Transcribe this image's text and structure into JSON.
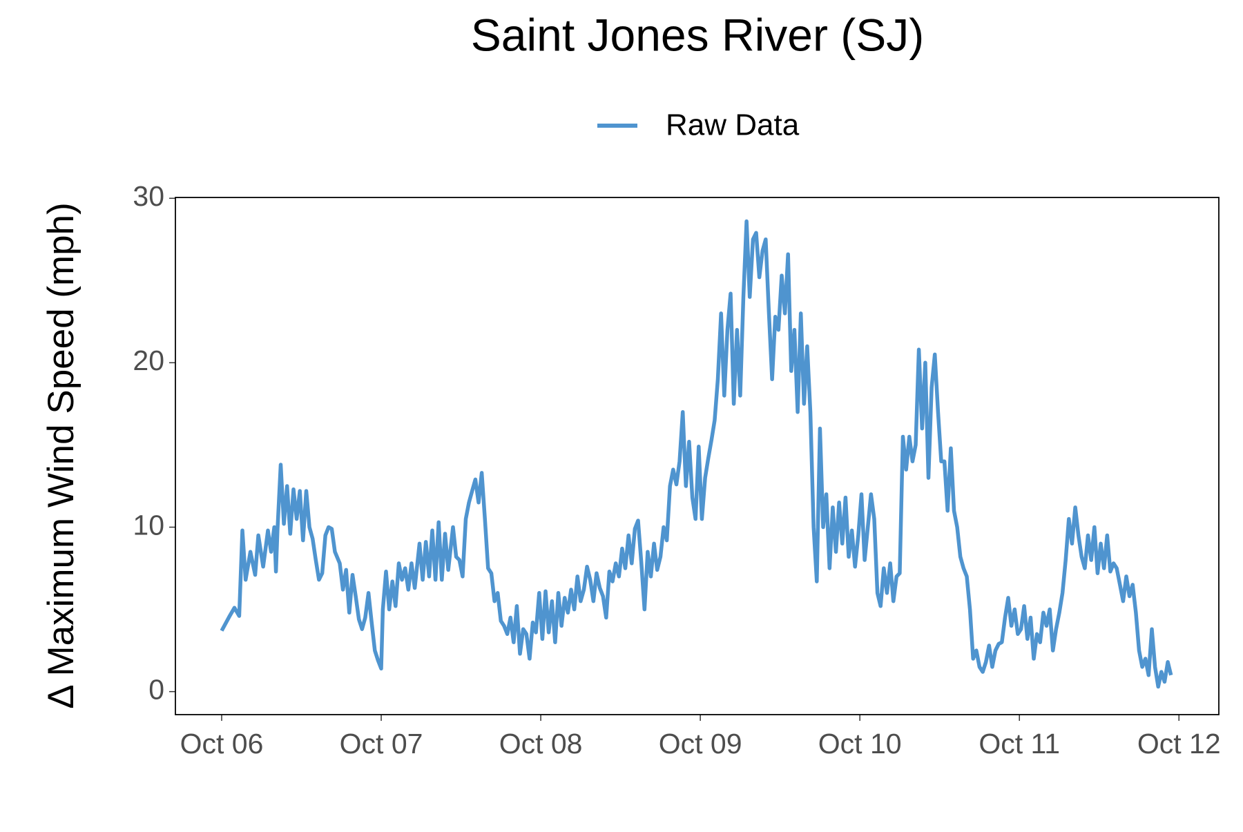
{
  "chart_data": {
    "type": "line",
    "title": "Saint Jones River (SJ)",
    "y_label": "Δ Maximum Wind Speed (mph)",
    "legend": "top",
    "grid": false,
    "xlim": [
      -0.29,
      6.25
    ],
    "ylim": [
      -1.4,
      30.05
    ],
    "yticks": [
      0,
      10,
      20,
      30
    ],
    "xticks": [
      {
        "value": 0,
        "label": "Oct 06"
      },
      {
        "value": 1,
        "label": "Oct 07"
      },
      {
        "value": 2,
        "label": "Oct 08"
      },
      {
        "value": 3,
        "label": "Oct 09"
      },
      {
        "value": 4,
        "label": "Oct 10"
      },
      {
        "value": 5,
        "label": "Oct 11"
      },
      {
        "value": 6,
        "label": "Oct 12"
      }
    ],
    "x": [
      0.0,
      0.05,
      0.08,
      0.11,
      0.13,
      0.15,
      0.18,
      0.21,
      0.23,
      0.26,
      0.29,
      0.31,
      0.33,
      0.34,
      0.35,
      0.37,
      0.39,
      0.41,
      0.43,
      0.45,
      0.47,
      0.49,
      0.51,
      0.53,
      0.55,
      0.57,
      0.59,
      0.61,
      0.63,
      0.65,
      0.67,
      0.69,
      0.71,
      0.74,
      0.76,
      0.78,
      0.8,
      0.82,
      0.84,
      0.86,
      0.88,
      0.9,
      0.92,
      0.94,
      0.96,
      0.98,
      1.0,
      1.01,
      1.03,
      1.05,
      1.07,
      1.09,
      1.11,
      1.13,
      1.15,
      1.17,
      1.19,
      1.21,
      1.24,
      1.26,
      1.28,
      1.3,
      1.32,
      1.34,
      1.36,
      1.38,
      1.4,
      1.42,
      1.45,
      1.47,
      1.49,
      1.51,
      1.53,
      1.55,
      1.57,
      1.59,
      1.61,
      1.63,
      1.65,
      1.67,
      1.69,
      1.71,
      1.73,
      1.75,
      1.77,
      1.79,
      1.81,
      1.83,
      1.85,
      1.87,
      1.89,
      1.91,
      1.93,
      1.95,
      1.97,
      1.99,
      2.01,
      2.03,
      2.05,
      2.07,
      2.09,
      2.11,
      2.13,
      2.15,
      2.17,
      2.19,
      2.21,
      2.23,
      2.25,
      2.27,
      2.29,
      2.31,
      2.33,
      2.35,
      2.37,
      2.39,
      2.41,
      2.43,
      2.45,
      2.47,
      2.49,
      2.51,
      2.53,
      2.55,
      2.57,
      2.59,
      2.61,
      2.63,
      2.65,
      2.67,
      2.69,
      2.71,
      2.73,
      2.75,
      2.77,
      2.79,
      2.81,
      2.83,
      2.85,
      2.87,
      2.89,
      2.91,
      2.93,
      2.95,
      2.97,
      2.99,
      3.01,
      3.03,
      3.05,
      3.07,
      3.09,
      3.11,
      3.13,
      3.15,
      3.17,
      3.19,
      3.21,
      3.23,
      3.25,
      3.27,
      3.29,
      3.31,
      3.33,
      3.35,
      3.37,
      3.39,
      3.41,
      3.43,
      3.45,
      3.47,
      3.49,
      3.51,
      3.53,
      3.55,
      3.57,
      3.59,
      3.61,
      3.63,
      3.65,
      3.67,
      3.69,
      3.71,
      3.73,
      3.75,
      3.77,
      3.79,
      3.81,
      3.83,
      3.85,
      3.87,
      3.89,
      3.91,
      3.93,
      3.95,
      3.97,
      3.99,
      4.01,
      4.03,
      4.05,
      4.07,
      4.09,
      4.11,
      4.13,
      4.15,
      4.17,
      4.19,
      4.21,
      4.23,
      4.25,
      4.27,
      4.29,
      4.31,
      4.33,
      4.35,
      4.37,
      4.39,
      4.41,
      4.43,
      4.45,
      4.47,
      4.49,
      4.51,
      4.53,
      4.55,
      4.57,
      4.59,
      4.61,
      4.63,
      4.65,
      4.67,
      4.69,
      4.71,
      4.73,
      4.75,
      4.77,
      4.79,
      4.81,
      4.83,
      4.85,
      4.87,
      4.89,
      4.91,
      4.93,
      4.95,
      4.97,
      4.99,
      5.01,
      5.03,
      5.05,
      5.07,
      5.09,
      5.11,
      5.13,
      5.15,
      5.17,
      5.19,
      5.21,
      5.23,
      5.25,
      5.27,
      5.29,
      5.31,
      5.33,
      5.35,
      5.37,
      5.39,
      5.41,
      5.43,
      5.45,
      5.47,
      5.49,
      5.51,
      5.53,
      5.55,
      5.57,
      5.59,
      5.61,
      5.63,
      5.65,
      5.67,
      5.69,
      5.71,
      5.73,
      5.75,
      5.77,
      5.79,
      5.81,
      5.83,
      5.85,
      5.87,
      5.89,
      5.91,
      5.93,
      5.95
    ],
    "series": [
      {
        "name": "Raw Data",
        "color": "#4f94cf",
        "values": [
          3.7,
          4.6,
          5.1,
          4.6,
          9.8,
          6.8,
          8.5,
          7.1,
          9.5,
          7.6,
          9.8,
          8.5,
          10.0,
          7.3,
          9.9,
          13.8,
          10.2,
          12.5,
          9.6,
          12.3,
          10.5,
          12.2,
          9.2,
          12.2,
          10.0,
          9.3,
          8.0,
          6.8,
          7.2,
          9.5,
          10.0,
          9.9,
          8.5,
          7.8,
          6.2,
          7.4,
          4.8,
          7.1,
          5.8,
          4.4,
          3.8,
          4.5,
          6.0,
          4.2,
          2.5,
          1.9,
          1.4,
          5.0,
          7.3,
          5.0,
          6.7,
          5.2,
          7.8,
          6.8,
          7.5,
          6.2,
          7.8,
          6.3,
          9.0,
          6.8,
          9.1,
          7.0,
          9.8,
          6.8,
          10.3,
          6.8,
          9.6,
          7.4,
          10.0,
          8.2,
          8.0,
          7.0,
          10.5,
          11.5,
          12.2,
          12.9,
          11.5,
          13.3,
          10.5,
          7.5,
          7.2,
          5.5,
          6.0,
          4.3,
          4.0,
          3.5,
          4.5,
          3.0,
          5.2,
          2.3,
          3.8,
          3.5,
          2.0,
          4.2,
          3.6,
          6.0,
          3.2,
          6.1,
          3.6,
          5.5,
          3.0,
          6.0,
          4.0,
          5.7,
          4.8,
          6.2,
          5.0,
          7.0,
          5.5,
          6.2,
          7.6,
          6.8,
          5.5,
          7.2,
          6.3,
          5.8,
          4.5,
          7.3,
          6.7,
          7.8,
          7.0,
          8.7,
          7.5,
          9.5,
          7.8,
          9.9,
          10.4,
          7.9,
          5.0,
          8.5,
          7.0,
          9.0,
          7.4,
          8.2,
          10.0,
          9.2,
          12.5,
          13.5,
          12.6,
          14.0,
          17.0,
          12.5,
          15.2,
          11.8,
          10.5,
          14.9,
          10.5,
          13.0,
          14.2,
          15.3,
          16.5,
          19.0,
          23.0,
          18.0,
          22.0,
          24.2,
          17.5,
          22.0,
          18.0,
          24.0,
          28.6,
          24.0,
          27.5,
          27.9,
          25.2,
          26.8,
          27.5,
          23.0,
          19.0,
          22.8,
          22.0,
          25.3,
          23.0,
          26.6,
          19.5,
          22.0,
          17.0,
          23.0,
          17.5,
          21.0,
          17.0,
          10.0,
          6.7,
          16.0,
          10.0,
          12.0,
          7.5,
          11.2,
          8.5,
          11.5,
          9.0,
          11.8,
          8.2,
          9.8,
          7.6,
          9.5,
          12.0,
          8.0,
          10.0,
          12.0,
          10.5,
          6.0,
          5.2,
          7.5,
          6.0,
          7.8,
          5.5,
          7.0,
          7.2,
          15.5,
          13.5,
          15.5,
          14.0,
          15.0,
          20.8,
          16.0,
          20.0,
          13.0,
          18.5,
          20.5,
          17.0,
          14.0,
          14.0,
          11.0,
          14.8,
          11.0,
          10.0,
          8.2,
          7.5,
          7.0,
          5.0,
          2.0,
          2.5,
          1.5,
          1.2,
          1.8,
          2.8,
          1.5,
          2.5,
          2.9,
          3.0,
          4.5,
          5.7,
          4.0,
          5.0,
          3.5,
          3.8,
          5.2,
          3.2,
          4.5,
          2.0,
          3.5,
          3.0,
          4.8,
          4.0,
          5.0,
          2.5,
          3.8,
          4.8,
          6.0,
          8.0,
          10.5,
          9.0,
          11.2,
          9.5,
          8.2,
          7.5,
          9.5,
          8.0,
          10.0,
          7.2,
          9.0,
          7.5,
          9.5,
          7.3,
          7.8,
          7.5,
          6.5,
          5.5,
          7.0,
          5.8,
          6.5,
          4.8,
          2.5,
          1.5,
          2.0,
          1.0,
          3.8,
          1.5,
          0.3,
          1.2,
          0.6,
          1.8,
          1.0
        ]
      }
    ]
  }
}
